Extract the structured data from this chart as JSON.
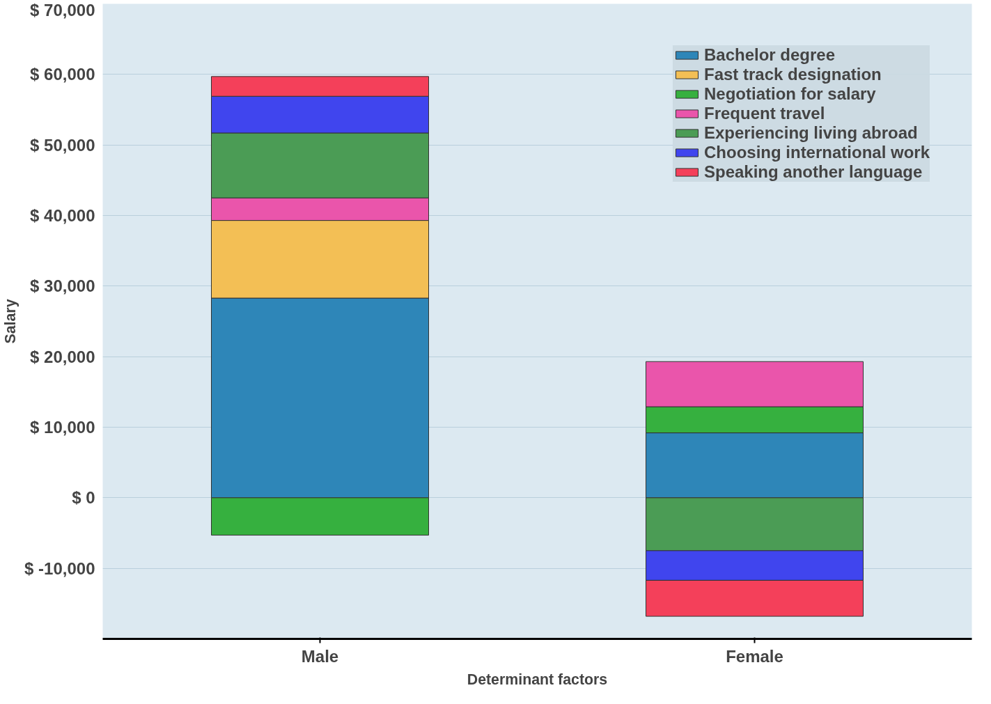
{
  "chart_data": {
    "type": "bar",
    "stacked": true,
    "xlabel": "Determinant factors",
    "ylabel": "Salary",
    "categories": [
      "Male",
      "Female"
    ],
    "series": [
      {
        "name": "Bachelor degree",
        "color": "#2e86b8",
        "values": [
          28300,
          9200
        ]
      },
      {
        "name": "Fast track designation",
        "color": "#f3bf55",
        "values": [
          11000,
          null
        ]
      },
      {
        "name": "Negotiation for salary",
        "color": "#36b03f",
        "values": [
          -5300,
          3700
        ]
      },
      {
        "name": "Frequent travel",
        "color": "#ea55ab",
        "values": [
          3200,
          6400
        ]
      },
      {
        "name": "Experiencing living abroad",
        "color": "#4b9c55",
        "values": [
          9200,
          -7500
        ]
      },
      {
        "name": "Choosing international work",
        "color": "#4045ee",
        "values": [
          5200,
          -4200
        ]
      },
      {
        "name": "Speaking another language",
        "color": "#f4405a",
        "values": [
          2800,
          -5100
        ]
      }
    ],
    "ylim": [
      -20000,
      70000
    ],
    "yticks": [
      {
        "value": -10000,
        "label": "$ -10,000"
      },
      {
        "value": 0,
        "label": "$ 0"
      },
      {
        "value": 10000,
        "label": "$ 10,000"
      },
      {
        "value": 20000,
        "label": "$ 20,000"
      },
      {
        "value": 30000,
        "label": "$ 30,000"
      },
      {
        "value": 40000,
        "label": "$ 40,000"
      },
      {
        "value": 50000,
        "label": "$ 50,000"
      },
      {
        "value": 60000,
        "label": "$ 60,000"
      },
      {
        "value": 70000,
        "label": "$ 70,000"
      }
    ],
    "grid": "y",
    "legend": "top right"
  }
}
